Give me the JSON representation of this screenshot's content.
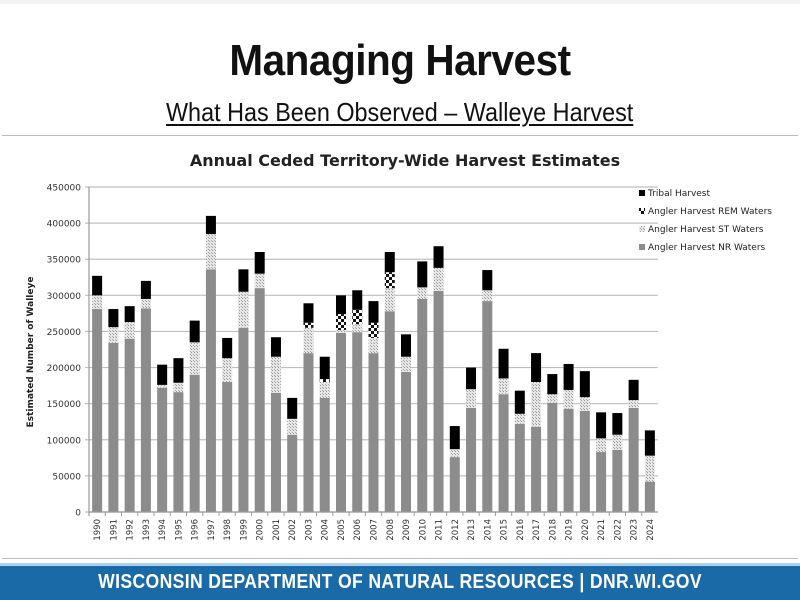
{
  "slide": {
    "title": "Managing Harvest",
    "subtitle": "What Has Been Observed – Walleye Harvest",
    "footer": "WISCONSIN DEPARTMENT OF NATURAL RESOURCES | DNR.WI.GOV"
  },
  "colors": {
    "footer_bg": "#1a6aa8",
    "footer_accent": "#a9d0ec",
    "nr_waters": "#8c8c8c",
    "st_waters": "#d4d4d4",
    "rem_waters": "#222222",
    "tribal": "#000000",
    "gridline": "#bfbfbf"
  },
  "chart_data": {
    "type": "bar",
    "stacked": true,
    "title": "Annual Ceded Territory-Wide Harvest Estimates",
    "xlabel": "",
    "ylabel": "Estimated Number of Walleye",
    "ylim": [
      0,
      450000
    ],
    "yticks": [
      0,
      50000,
      100000,
      150000,
      200000,
      250000,
      300000,
      350000,
      400000,
      450000
    ],
    "grid": true,
    "legend_position": "upper right",
    "legend": [
      "Tribal Harvest",
      "Angler Harvest REM Waters",
      "Angler Harvest ST Waters",
      "Angler Harvest NR Waters"
    ],
    "categories": [
      "1990",
      "1991",
      "1992",
      "1993",
      "1994",
      "1995",
      "1996",
      "1997",
      "1998",
      "1999",
      "2000",
      "2001",
      "2002",
      "2003",
      "2004",
      "2005",
      "2006",
      "2007",
      "2008",
      "2009",
      "2010",
      "2011",
      "2012",
      "2013",
      "2014",
      "2015",
      "2016",
      "2017",
      "2018",
      "2019",
      "2020",
      "2021",
      "2022",
      "2023",
      "2024"
    ],
    "series": [
      {
        "name": "Angler Harvest NR Waters",
        "values": [
          281000,
          234000,
          240000,
          282000,
          172000,
          166000,
          190000,
          336000,
          180000,
          255000,
          310000,
          165000,
          107000,
          220000,
          158000,
          248000,
          249000,
          220000,
          278000,
          194000,
          295000,
          306000,
          76000,
          144000,
          292000,
          163000,
          122000,
          118000,
          151000,
          143000,
          140000,
          83000,
          86000,
          144000,
          42000
        ]
      },
      {
        "name": "Angler Harvest ST Waters",
        "values": [
          19000,
          22000,
          23000,
          13000,
          4000,
          13000,
          45000,
          49000,
          33000,
          50000,
          20000,
          50000,
          22000,
          35000,
          22000,
          4000,
          11000,
          21000,
          32000,
          21000,
          16000,
          32000,
          11000,
          26000,
          15000,
          22000,
          14000,
          62000,
          12000,
          26000,
          19000,
          19000,
          21000,
          11000,
          36000
        ]
      },
      {
        "name": "Angler Harvest REM Waters",
        "values": [
          0,
          0,
          0,
          0,
          0,
          0,
          0,
          0,
          0,
          0,
          0,
          0,
          0,
          7000,
          4000,
          22000,
          20000,
          21000,
          22000,
          0,
          0,
          0,
          0,
          0,
          0,
          0,
          0,
          0,
          0,
          0,
          0,
          0,
          0,
          0,
          0
        ]
      },
      {
        "name": "Tribal Harvest",
        "values": [
          27000,
          25000,
          22000,
          25000,
          28000,
          34000,
          30000,
          25000,
          28000,
          31000,
          30000,
          27000,
          29000,
          27000,
          31000,
          26000,
          27000,
          30000,
          28000,
          31000,
          36000,
          30000,
          32000,
          30000,
          28000,
          41000,
          32000,
          40000,
          28000,
          36000,
          36000,
          36000,
          30000,
          28000,
          35000
        ]
      }
    ]
  }
}
